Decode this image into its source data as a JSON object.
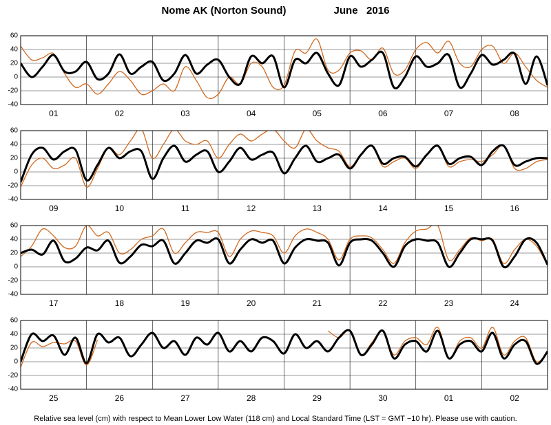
{
  "title": "Nome AK (Norton Sound)",
  "date": "June   2016",
  "footnote": "Relative sea level (cm) with respect to Mean Lower Low Water (118 cm) and Local Standard Time (LST = GMT −10 hr). Please use with caution.",
  "chart_data": [
    {
      "type": "line",
      "x": [
        0,
        4,
        8,
        12,
        16,
        20,
        24,
        28,
        32,
        36,
        40,
        44,
        48,
        52,
        56,
        60,
        64,
        68,
        72,
        76,
        80,
        84,
        88,
        92,
        96,
        100,
        104,
        108,
        112,
        116,
        120,
        124,
        128,
        132,
        136,
        140,
        144,
        148,
        152,
        156,
        160,
        164,
        168,
        172,
        176,
        180,
        184,
        188,
        192
      ],
      "xlim": [
        0,
        192
      ],
      "xticks": [
        {
          "value": 12,
          "label": "01"
        },
        {
          "value": 36,
          "label": "02"
        },
        {
          "value": 60,
          "label": "03"
        },
        {
          "value": 84,
          "label": "04"
        },
        {
          "value": 108,
          "label": "05"
        },
        {
          "value": 132,
          "label": "06"
        },
        {
          "value": 156,
          "label": "07"
        },
        {
          "value": 180,
          "label": "08"
        }
      ],
      "ylim": [
        -40,
        60
      ],
      "yticks": [
        -40,
        -20,
        0,
        20,
        40,
        60
      ],
      "grid": true,
      "series": [
        {
          "color": "#d2691e",
          "values": [
            45,
            25,
            28,
            34,
            5,
            -15,
            -10,
            -25,
            -10,
            8,
            -5,
            -25,
            -20,
            -10,
            -20,
            15,
            -5,
            -30,
            -25,
            0,
            -10,
            20,
            15,
            -15,
            -12,
            38,
            35,
            55,
            10,
            10,
            35,
            38,
            25,
            42,
            5,
            10,
            40,
            50,
            35,
            52,
            20,
            15,
            40,
            45,
            20,
            35,
            15,
            -5,
            -15
          ]
        },
        {
          "color": "#000000",
          "values": [
            20,
            0,
            15,
            32,
            8,
            8,
            22,
            -3,
            5,
            33,
            5,
            15,
            22,
            -5,
            5,
            32,
            5,
            18,
            25,
            0,
            -10,
            30,
            20,
            30,
            -15,
            25,
            20,
            35,
            5,
            -12,
            30,
            15,
            25,
            35,
            -15,
            0,
            30,
            15,
            20,
            32,
            -15,
            5,
            32,
            18,
            25,
            34,
            -10,
            30,
            -12
          ]
        }
      ]
    },
    {
      "type": "line",
      "x": [
        0,
        4,
        8,
        12,
        16,
        20,
        24,
        28,
        32,
        36,
        40,
        44,
        48,
        52,
        56,
        60,
        64,
        68,
        72,
        76,
        80,
        84,
        88,
        92,
        96,
        100,
        104,
        108,
        112,
        116,
        120,
        124,
        128,
        132,
        136,
        140,
        144,
        148,
        152,
        156,
        160,
        164,
        168,
        172,
        176,
        180,
        184,
        188,
        192
      ],
      "xlim": [
        0,
        192
      ],
      "xticks": [
        {
          "value": 12,
          "label": "09"
        },
        {
          "value": 36,
          "label": "10"
        },
        {
          "value": 60,
          "label": "11"
        },
        {
          "value": 84,
          "label": "12"
        },
        {
          "value": 108,
          "label": "13"
        },
        {
          "value": 132,
          "label": "14"
        },
        {
          "value": 156,
          "label": "15"
        },
        {
          "value": 180,
          "label": "16"
        }
      ],
      "ylim": [
        -40,
        60
      ],
      "yticks": [
        -40,
        -20,
        0,
        20,
        40,
        60
      ],
      "grid": true,
      "series": [
        {
          "color": "#d2691e",
          "values": [
            -22,
            10,
            20,
            5,
            10,
            20,
            -22,
            5,
            35,
            25,
            45,
            62,
            20,
            40,
            62,
            45,
            40,
            45,
            20,
            40,
            55,
            45,
            55,
            62,
            45,
            35,
            62,
            45,
            35,
            30,
            8,
            25,
            38,
            8,
            15,
            20,
            5,
            25,
            38,
            8,
            15,
            18,
            15,
            25,
            38,
            5,
            5,
            15,
            18
          ]
        },
        {
          "color": "#000000",
          "values": [
            -15,
            25,
            35,
            18,
            30,
            32,
            -12,
            10,
            35,
            20,
            30,
            30,
            -10,
            20,
            38,
            15,
            25,
            30,
            0,
            15,
            35,
            18,
            25,
            28,
            -2,
            20,
            38,
            15,
            20,
            25,
            5,
            25,
            38,
            12,
            20,
            22,
            8,
            25,
            38,
            12,
            20,
            22,
            10,
            30,
            38,
            10,
            15,
            20,
            20
          ]
        }
      ]
    },
    {
      "type": "line",
      "x": [
        0,
        4,
        8,
        12,
        16,
        20,
        24,
        28,
        32,
        36,
        40,
        44,
        48,
        52,
        56,
        60,
        64,
        68,
        72,
        76,
        80,
        84,
        88,
        92,
        96,
        100,
        104,
        108,
        112,
        116,
        120,
        124,
        128,
        132,
        136,
        140,
        144,
        148,
        152,
        156,
        160,
        164,
        168,
        172,
        176,
        180,
        184,
        188,
        192
      ],
      "xlim": [
        0,
        192
      ],
      "xticks": [
        {
          "value": 12,
          "label": "17"
        },
        {
          "value": 36,
          "label": "18"
        },
        {
          "value": 60,
          "label": "19"
        },
        {
          "value": 84,
          "label": "20"
        },
        {
          "value": 108,
          "label": "21"
        },
        {
          "value": 132,
          "label": "22"
        },
        {
          "value": 156,
          "label": "23"
        },
        {
          "value": 180,
          "label": "24"
        }
      ],
      "ylim": [
        -40,
        60
      ],
      "yticks": [
        -40,
        -20,
        0,
        20,
        40,
        60
      ],
      "grid": true,
      "series": [
        {
          "color": "#d2691e",
          "values": [
            15,
            30,
            55,
            45,
            28,
            30,
            60,
            45,
            50,
            20,
            25,
            40,
            45,
            55,
            20,
            35,
            50,
            50,
            50,
            15,
            40,
            52,
            50,
            45,
            20,
            45,
            55,
            50,
            40,
            10,
            40,
            45,
            42,
            25,
            5,
            35,
            52,
            55,
            60,
            10,
            25,
            42,
            38,
            40,
            5,
            25,
            40,
            30,
            2
          ]
        },
        {
          "color": "#000000",
          "values": [
            20,
            25,
            18,
            38,
            8,
            12,
            28,
            24,
            38,
            6,
            15,
            32,
            30,
            38,
            5,
            20,
            38,
            35,
            40,
            5,
            25,
            40,
            35,
            38,
            5,
            28,
            40,
            38,
            35,
            2,
            35,
            40,
            38,
            20,
            0,
            30,
            40,
            38,
            35,
            0,
            20,
            40,
            40,
            38,
            0,
            15,
            40,
            35,
            3
          ]
        }
      ]
    },
    {
      "type": "line",
      "x": [
        0,
        4,
        8,
        12,
        16,
        20,
        24,
        28,
        32,
        36,
        40,
        44,
        48,
        52,
        56,
        60,
        64,
        68,
        72,
        76,
        80,
        84,
        88,
        92,
        96,
        100,
        104,
        108,
        112,
        116,
        120,
        124,
        128,
        132,
        136,
        140,
        144,
        148,
        152,
        156,
        160,
        164,
        168,
        172,
        176,
        180,
        184,
        188,
        192
      ],
      "xlim": [
        0,
        192
      ],
      "xticks": [
        {
          "value": 12,
          "label": "25"
        },
        {
          "value": 36,
          "label": "26"
        },
        {
          "value": 60,
          "label": "27"
        },
        {
          "value": 84,
          "label": "28"
        },
        {
          "value": 108,
          "label": "29"
        },
        {
          "value": 132,
          "label": "30"
        },
        {
          "value": 156,
          "label": "01"
        },
        {
          "value": 180,
          "label": "02"
        }
      ],
      "ylim": [
        -40,
        60
      ],
      "yticks": [
        -40,
        -20,
        0,
        20,
        40,
        60
      ],
      "grid": true,
      "series": [
        {
          "color": "#d2691e",
          "values": [
            -8,
            28,
            22,
            28,
            26,
            30,
            -5,
            32,
            null,
            null,
            null,
            null,
            null,
            null,
            null,
            null,
            null,
            null,
            null,
            null,
            null,
            null,
            null,
            null,
            null,
            null,
            null,
            null,
            45,
            35,
            45,
            10,
            28,
            45,
            10,
            30,
            35,
            25,
            50,
            5,
            30,
            35,
            20,
            50,
            10,
            30,
            35,
            0,
            15
          ]
        },
        {
          "color": "#000000",
          "values": [
            0,
            40,
            30,
            38,
            10,
            35,
            -2,
            40,
            28,
            35,
            8,
            25,
            42,
            20,
            30,
            10,
            35,
            25,
            42,
            15,
            30,
            15,
            35,
            30,
            12,
            40,
            20,
            30,
            15,
            35,
            45,
            10,
            25,
            45,
            5,
            25,
            30,
            15,
            45,
            5,
            25,
            30,
            15,
            42,
            5,
            25,
            30,
            -3,
            15
          ]
        }
      ]
    }
  ]
}
